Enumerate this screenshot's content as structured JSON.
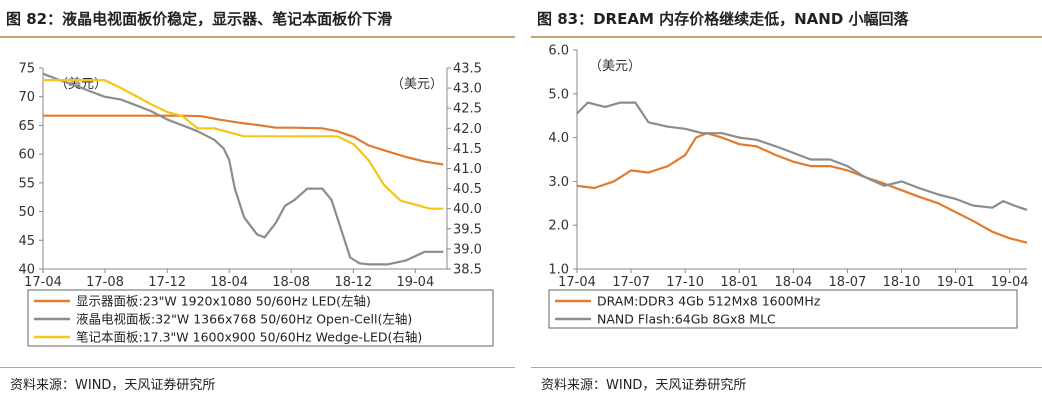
{
  "left": {
    "title": "图 82：液晶电视面板价稳定，显示器、笔记本面板价下滑",
    "source": "资料来源：WIND，天风证券研究所",
    "chart_data": {
      "type": "line",
      "unit_left": "（美元）",
      "unit_right": "（美元）",
      "xlim": [
        2017.25,
        2019.42
      ],
      "x_ticks": [
        {
          "v": 2017.25,
          "label": "17-04"
        },
        {
          "v": 2017.583,
          "label": "17-08"
        },
        {
          "v": 2017.917,
          "label": "17-12"
        },
        {
          "v": 2018.25,
          "label": "18-04"
        },
        {
          "v": 2018.583,
          "label": "18-08"
        },
        {
          "v": 2018.917,
          "label": "18-12"
        },
        {
          "v": 2019.25,
          "label": "19-04"
        }
      ],
      "ylim_left": [
        40,
        75
      ],
      "y_ticks_left": [
        40,
        45,
        50,
        55,
        60,
        65,
        70,
        75
      ],
      "ylim_right": [
        38.5,
        43.5
      ],
      "y_ticks_right": [
        "38.5",
        "39.0",
        "39.5",
        "40.0",
        "40.5",
        "41.0",
        "41.5",
        "42.0",
        "42.5",
        "43.0",
        "43.5"
      ],
      "legend": "bottom",
      "series": [
        {
          "name": "显示器面板:23\"W  1920x1080 50/60Hz LED(左轴)",
          "axis": "left",
          "color": "#e07b2f",
          "points": [
            [
              2017.25,
              66.7
            ],
            [
              2017.5,
              66.7
            ],
            [
              2017.75,
              66.7
            ],
            [
              2018.0,
              66.7
            ],
            [
              2018.1,
              66.6
            ],
            [
              2018.2,
              66
            ],
            [
              2018.3,
              65.5
            ],
            [
              2018.42,
              65
            ],
            [
              2018.5,
              64.6
            ],
            [
              2018.6,
              64.6
            ],
            [
              2018.75,
              64.5
            ],
            [
              2018.83,
              64
            ],
            [
              2018.92,
              63
            ],
            [
              2019.0,
              61.5
            ],
            [
              2019.1,
              60.5
            ],
            [
              2019.2,
              59.5
            ],
            [
              2019.3,
              58.7
            ],
            [
              2019.4,
              58.2
            ]
          ]
        },
        {
          "name": "液晶电视面板:32\"W  1366x768 50/60Hz Open-Cell(左轴)",
          "axis": "left",
          "color": "#8c8c8c",
          "points": [
            [
              2017.25,
              74
            ],
            [
              2017.33,
              73
            ],
            [
              2017.42,
              72
            ],
            [
              2017.5,
              71
            ],
            [
              2017.58,
              70
            ],
            [
              2017.67,
              69.5
            ],
            [
              2017.75,
              68.5
            ],
            [
              2017.83,
              67.5
            ],
            [
              2017.92,
              66
            ],
            [
              2018.0,
              65
            ],
            [
              2018.08,
              64
            ],
            [
              2018.17,
              62.5
            ],
            [
              2018.22,
              61
            ],
            [
              2018.25,
              59
            ],
            [
              2018.28,
              54
            ],
            [
              2018.33,
              49
            ],
            [
              2018.4,
              46
            ],
            [
              2018.44,
              45.5
            ],
            [
              2018.5,
              48
            ],
            [
              2018.55,
              51
            ],
            [
              2018.6,
              52
            ],
            [
              2018.67,
              54
            ],
            [
              2018.75,
              54
            ],
            [
              2018.8,
              52
            ],
            [
              2018.85,
              47
            ],
            [
              2018.9,
              42
            ],
            [
              2018.95,
              41
            ],
            [
              2019.0,
              40.8
            ],
            [
              2019.1,
              40.8
            ],
            [
              2019.2,
              41.5
            ],
            [
              2019.3,
              43
            ],
            [
              2019.4,
              43
            ]
          ]
        },
        {
          "name": "笔记本面板:17.3\"W  1600x900 50/60Hz Wedge-LED(右轴)",
          "axis": "right",
          "color": "#f5c518",
          "points": [
            [
              2017.25,
              43.2
            ],
            [
              2017.5,
              43.2
            ],
            [
              2017.58,
              43.2
            ],
            [
              2017.67,
              43.0
            ],
            [
              2017.75,
              42.8
            ],
            [
              2017.83,
              42.6
            ],
            [
              2017.92,
              42.4
            ],
            [
              2018.0,
              42.3
            ],
            [
              2018.08,
              42.0
            ],
            [
              2018.17,
              42.0
            ],
            [
              2018.25,
              41.9
            ],
            [
              2018.33,
              41.8
            ],
            [
              2018.5,
              41.8
            ],
            [
              2018.67,
              41.8
            ],
            [
              2018.83,
              41.8
            ],
            [
              2018.92,
              41.6
            ],
            [
              2019.0,
              41.2
            ],
            [
              2019.08,
              40.6
            ],
            [
              2019.17,
              40.2
            ],
            [
              2019.25,
              40.1
            ],
            [
              2019.33,
              40.0
            ],
            [
              2019.4,
              40.0
            ]
          ]
        }
      ]
    }
  },
  "right": {
    "title": "图 83：DREAM 内存价格继续走低，NAND 小幅回落",
    "source": "资料来源：WIND，天风证券研究所",
    "chart_data": {
      "type": "line",
      "unit_left": "（美元）",
      "xlim": [
        2017.25,
        2019.33
      ],
      "x_ticks": [
        {
          "v": 2017.25,
          "label": "17-04"
        },
        {
          "v": 2017.5,
          "label": "17-07"
        },
        {
          "v": 2017.75,
          "label": "17-10"
        },
        {
          "v": 2018.0,
          "label": "18-01"
        },
        {
          "v": 2018.25,
          "label": "18-04"
        },
        {
          "v": 2018.5,
          "label": "18-07"
        },
        {
          "v": 2018.75,
          "label": "18-10"
        },
        {
          "v": 2019.0,
          "label": "19-01"
        },
        {
          "v": 2019.25,
          "label": "19-04"
        }
      ],
      "ylim_left": [
        1.0,
        6.0
      ],
      "y_ticks_left": [
        "1.0",
        "2.0",
        "3.0",
        "4.0",
        "5.0",
        "6.0"
      ],
      "legend": "bottom",
      "series": [
        {
          "name": "DRAM:DDR3 4Gb 512Mx8 1600MHz",
          "axis": "left",
          "color": "#e07b2f",
          "points": [
            [
              2017.25,
              2.9
            ],
            [
              2017.33,
              2.85
            ],
            [
              2017.42,
              3.0
            ],
            [
              2017.5,
              3.25
            ],
            [
              2017.58,
              3.2
            ],
            [
              2017.67,
              3.35
            ],
            [
              2017.75,
              3.6
            ],
            [
              2017.8,
              4.0
            ],
            [
              2017.85,
              4.1
            ],
            [
              2017.92,
              4.0
            ],
            [
              2018.0,
              3.85
            ],
            [
              2018.08,
              3.8
            ],
            [
              2018.17,
              3.6
            ],
            [
              2018.25,
              3.45
            ],
            [
              2018.33,
              3.35
            ],
            [
              2018.42,
              3.35
            ],
            [
              2018.5,
              3.25
            ],
            [
              2018.58,
              3.1
            ],
            [
              2018.67,
              2.95
            ],
            [
              2018.75,
              2.8
            ],
            [
              2018.83,
              2.65
            ],
            [
              2018.92,
              2.5
            ],
            [
              2019.0,
              2.3
            ],
            [
              2019.08,
              2.1
            ],
            [
              2019.17,
              1.85
            ],
            [
              2019.25,
              1.7
            ],
            [
              2019.33,
              1.6
            ]
          ]
        },
        {
          "name": "NAND Flash:64Gb 8Gx8 MLC",
          "axis": "left",
          "color": "#8c8c8c",
          "points": [
            [
              2017.25,
              4.55
            ],
            [
              2017.3,
              4.8
            ],
            [
              2017.38,
              4.7
            ],
            [
              2017.45,
              4.8
            ],
            [
              2017.52,
              4.8
            ],
            [
              2017.58,
              4.35
            ],
            [
              2017.67,
              4.25
            ],
            [
              2017.75,
              4.2
            ],
            [
              2017.83,
              4.1
            ],
            [
              2017.92,
              4.1
            ],
            [
              2018.0,
              4.0
            ],
            [
              2018.08,
              3.95
            ],
            [
              2018.17,
              3.8
            ],
            [
              2018.25,
              3.65
            ],
            [
              2018.33,
              3.5
            ],
            [
              2018.42,
              3.5
            ],
            [
              2018.5,
              3.35
            ],
            [
              2018.58,
              3.1
            ],
            [
              2018.67,
              2.9
            ],
            [
              2018.75,
              3.0
            ],
            [
              2018.83,
              2.85
            ],
            [
              2018.92,
              2.7
            ],
            [
              2019.0,
              2.6
            ],
            [
              2019.08,
              2.45
            ],
            [
              2019.17,
              2.4
            ],
            [
              2019.22,
              2.55
            ],
            [
              2019.27,
              2.45
            ],
            [
              2019.33,
              2.35
            ]
          ]
        }
      ]
    }
  }
}
